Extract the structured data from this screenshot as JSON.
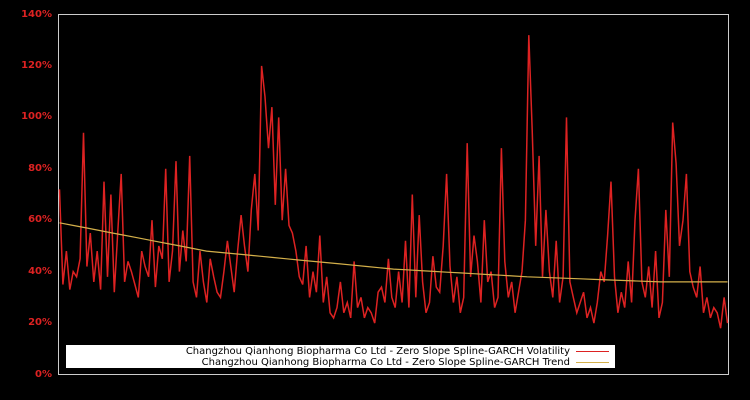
{
  "chart_data": {
    "type": "line",
    "title": "",
    "xlabel": "",
    "ylabel": "",
    "ylim": [
      0,
      140
    ],
    "yticks": [
      "0%",
      "20%",
      "40%",
      "60%",
      "80%",
      "100%",
      "120%",
      "140%"
    ],
    "grid": false,
    "legend_position": "lower center (inside plot)",
    "background": "#000000",
    "axis_frame_color": "#cccccc",
    "tick_label_color": "#dd2222",
    "series": [
      {
        "name": "Changzhou Qianhong Biopharma Co Ltd - Zero Slope Spline-GARCH Volatility",
        "color": "#dd2222",
        "values": [
          72,
          35,
          48,
          33,
          40,
          38,
          45,
          94,
          42,
          55,
          36,
          48,
          33,
          75,
          38,
          70,
          32,
          55,
          78,
          36,
          44,
          40,
          35,
          30,
          48,
          42,
          38,
          60,
          34,
          50,
          45,
          80,
          36,
          48,
          83,
          40,
          56,
          44,
          85,
          36,
          30,
          48,
          36,
          28,
          45,
          38,
          32,
          30,
          40,
          52,
          42,
          32,
          48,
          62,
          50,
          40,
          64,
          78,
          56,
          120,
          108,
          88,
          104,
          66,
          100,
          60,
          80,
          58,
          55,
          48,
          38,
          35,
          50,
          30,
          40,
          32,
          54,
          28,
          38,
          24,
          22,
          26,
          36,
          24,
          28,
          22,
          44,
          26,
          30,
          22,
          26,
          24,
          20,
          32,
          34,
          28,
          45,
          30,
          26,
          40,
          28,
          52,
          26,
          70,
          30,
          62,
          36,
          24,
          28,
          46,
          34,
          32,
          50,
          78,
          42,
          28,
          38,
          24,
          30,
          90,
          38,
          54,
          44,
          28,
          60,
          36,
          40,
          26,
          30,
          88,
          44,
          30,
          36,
          24,
          32,
          40,
          60,
          132,
          95,
          50,
          85,
          38,
          64,
          40,
          30,
          52,
          28,
          38,
          100,
          36,
          30,
          24,
          28,
          32,
          22,
          26,
          20,
          28,
          40,
          36,
          54,
          75,
          38,
          24,
          32,
          26,
          44,
          28,
          60,
          80,
          36,
          30,
          42,
          26,
          48,
          22,
          28,
          64,
          38,
          98,
          82,
          50,
          60,
          78,
          40,
          34,
          30,
          42,
          24,
          30,
          22,
          26,
          24,
          18,
          30,
          20
        ]
      },
      {
        "name": "Changzhou Qianhong Biopharma Co Ltd - Zero Slope Spline-GARCH Trend",
        "color": "#d4b04a",
        "values": [
          59,
          58,
          57,
          56,
          55,
          54,
          53,
          52,
          51,
          50,
          49,
          48,
          47.5,
          47,
          46.5,
          46,
          45.5,
          45,
          44.5,
          44,
          43.5,
          43,
          42.5,
          42,
          41.5,
          41,
          40.7,
          40.4,
          40.1,
          39.8,
          39.5,
          39.2,
          38.9,
          38.6,
          38.3,
          38,
          37.8,
          37.6,
          37.4,
          37.2,
          37,
          36.8,
          36.6,
          36.4,
          36.2,
          36,
          36,
          36,
          36,
          36,
          36
        ]
      }
    ]
  },
  "legend": {
    "volatility_label": "Changzhou Qianhong Biopharma Co Ltd - Zero Slope Spline-GARCH Volatility",
    "trend_label": "Changzhou Qianhong Biopharma Co Ltd - Zero Slope Spline-GARCH Trend",
    "volatility_color": "#dd2222",
    "trend_color": "#d4b04a"
  }
}
